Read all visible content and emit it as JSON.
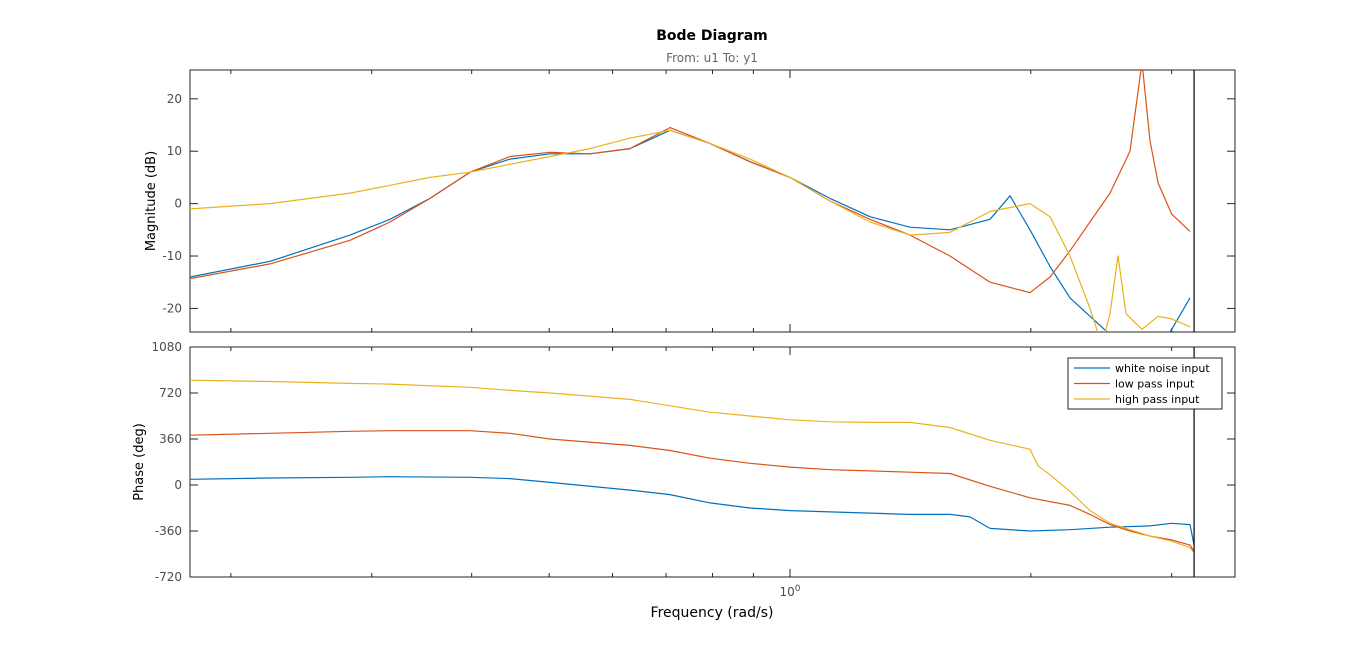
{
  "title": "Bode Diagram",
  "subtitle": "From: u1  To: y1",
  "colors": {
    "white_noise": "#0072bd",
    "low_pass": "#d95319",
    "high_pass": "#edb120",
    "axis": "#262626",
    "tick_text": "#4d4d4d"
  },
  "chart_data": [
    {
      "type": "line",
      "panel": "magnitude",
      "xscale": "log",
      "xticks": [
        "10^0"
      ],
      "ylabel": "Magnitude (dB)",
      "ylim": [
        -24.5,
        25.5
      ],
      "yticks": [
        -20,
        -10,
        0,
        10,
        20
      ],
      "grid": false,
      "series": [
        {
          "name": "white noise input",
          "color": "#0072bd",
          "x": [
            0.1778,
            0.2239,
            0.2818,
            0.3162,
            0.3548,
            0.3981,
            0.4467,
            0.5012,
            0.5623,
            0.631,
            0.708,
            0.7943,
            0.8913,
            1.0,
            1.122,
            1.2589,
            1.4125,
            1.5849,
            1.7783,
            1.8836,
            1.9953,
            2.1135,
            2.2387,
            2.5119,
            2.8184,
            3.0,
            3.1623
          ],
          "y": [
            -14.0,
            -11.0,
            -6.0,
            -3.0,
            1.0,
            6.0,
            8.5,
            9.5,
            9.5,
            10.5,
            14.0,
            11.5,
            8.0,
            5.0,
            1.0,
            -2.5,
            -4.5,
            -5.0,
            -3.0,
            1.5,
            -5.0,
            -12.0,
            -18.0,
            -25.0,
            -30.0,
            -24.0,
            -18.0
          ]
        },
        {
          "name": "low pass input",
          "color": "#d95319",
          "x": [
            0.1778,
            0.2239,
            0.2818,
            0.3162,
            0.3548,
            0.3981,
            0.4467,
            0.5012,
            0.5623,
            0.631,
            0.708,
            0.7943,
            0.8913,
            1.0,
            1.122,
            1.2589,
            1.4125,
            1.5849,
            1.7783,
            1.9953,
            2.1135,
            2.2387,
            2.5119,
            2.6607,
            2.7542,
            2.8184,
            2.884,
            3.0,
            3.1623
          ],
          "y": [
            -14.3,
            -11.5,
            -7.0,
            -3.5,
            1.0,
            6.0,
            9.0,
            9.8,
            9.5,
            10.5,
            14.5,
            11.5,
            8.0,
            5.0,
            0.5,
            -3.0,
            -6.0,
            -10.0,
            -15.0,
            -17.0,
            -14.0,
            -9.0,
            2.0,
            10.0,
            27.0,
            12.0,
            4.0,
            -2.0,
            -5.3
          ]
        },
        {
          "name": "high pass input",
          "color": "#edb120",
          "x": [
            0.1778,
            0.2239,
            0.2818,
            0.3162,
            0.3548,
            0.3981,
            0.4467,
            0.5012,
            0.5623,
            0.631,
            0.708,
            0.7943,
            0.8913,
            1.0,
            1.122,
            1.2589,
            1.4125,
            1.5849,
            1.7783,
            1.9953,
            2.1135,
            2.2387,
            2.3714,
            2.4547,
            2.5119,
            2.5704,
            2.6303,
            2.7542,
            2.884,
            3.0,
            3.1623
          ],
          "y": [
            -1.0,
            0.0,
            2.0,
            3.5,
            5.0,
            6.0,
            7.5,
            9.0,
            10.5,
            12.5,
            14.0,
            11.5,
            8.5,
            5.0,
            0.5,
            -3.5,
            -6.0,
            -5.5,
            -1.5,
            0.0,
            -2.5,
            -10.0,
            -20.0,
            -27.0,
            -21.0,
            -10.0,
            -21.0,
            -24.0,
            -21.5,
            -22.0,
            -23.5
          ]
        }
      ]
    },
    {
      "type": "line",
      "panel": "phase",
      "xscale": "log",
      "xlabel": "Frequency  (rad/s)",
      "xticks": [
        "10^0"
      ],
      "ylabel": "Phase (deg)",
      "ylim": [
        -720,
        1080
      ],
      "yticks": [
        -720,
        -360,
        0,
        360,
        720,
        1080
      ],
      "grid": false,
      "legend": "top-right",
      "series": [
        {
          "name": "white noise input",
          "color": "#0072bd",
          "x": [
            0.1778,
            0.2239,
            0.2818,
            0.3162,
            0.3981,
            0.4467,
            0.5012,
            0.631,
            0.708,
            0.7943,
            0.8913,
            1.0,
            1.2589,
            1.4125,
            1.5849,
            1.6788,
            1.7783,
            1.9953,
            2.2387,
            2.5119,
            2.8184,
            3.0,
            3.1623,
            3.2
          ],
          "y": [
            45,
            55,
            60,
            65,
            60,
            50,
            20,
            -40,
            -75,
            -140,
            -180,
            -200,
            -220,
            -230,
            -230,
            -250,
            -340,
            -360,
            -350,
            -330,
            -320,
            -300,
            -310,
            -470
          ]
        },
        {
          "name": "low pass input",
          "color": "#d95319",
          "x": [
            0.1778,
            0.2239,
            0.2818,
            0.3162,
            0.3981,
            0.4467,
            0.5012,
            0.631,
            0.708,
            0.7943,
            0.8913,
            1.0,
            1.122,
            1.2589,
            1.4125,
            1.5849,
            1.7783,
            1.9953,
            2.2387,
            2.3714,
            2.5119,
            2.6607,
            2.8184,
            3.0,
            3.1623,
            3.2
          ],
          "y": [
            390,
            405,
            420,
            425,
            425,
            405,
            360,
            310,
            270,
            210,
            170,
            140,
            120,
            110,
            100,
            90,
            -10,
            -100,
            -160,
            -230,
            -310,
            -360,
            -400,
            -430,
            -470,
            -520
          ]
        },
        {
          "name": "high pass input",
          "color": "#edb120",
          "x": [
            0.1778,
            0.2239,
            0.2818,
            0.3162,
            0.3981,
            0.4467,
            0.5012,
            0.631,
            0.708,
            0.7943,
            0.8913,
            1.0,
            1.122,
            1.2589,
            1.4125,
            1.5849,
            1.7783,
            1.9953,
            2.0417,
            2.1135,
            2.2387,
            2.3714,
            2.5119,
            2.6607,
            2.8184,
            3.0,
            3.1623,
            3.2
          ],
          "y": [
            820,
            810,
            795,
            790,
            765,
            740,
            720,
            670,
            620,
            570,
            540,
            510,
            495,
            490,
            490,
            450,
            350,
            280,
            150,
            80,
            -50,
            -200,
            -300,
            -350,
            -400,
            -440,
            -490,
            -530
          ]
        }
      ]
    }
  ],
  "legend": {
    "items": [
      "white noise input",
      "low pass input",
      "high pass input"
    ]
  }
}
